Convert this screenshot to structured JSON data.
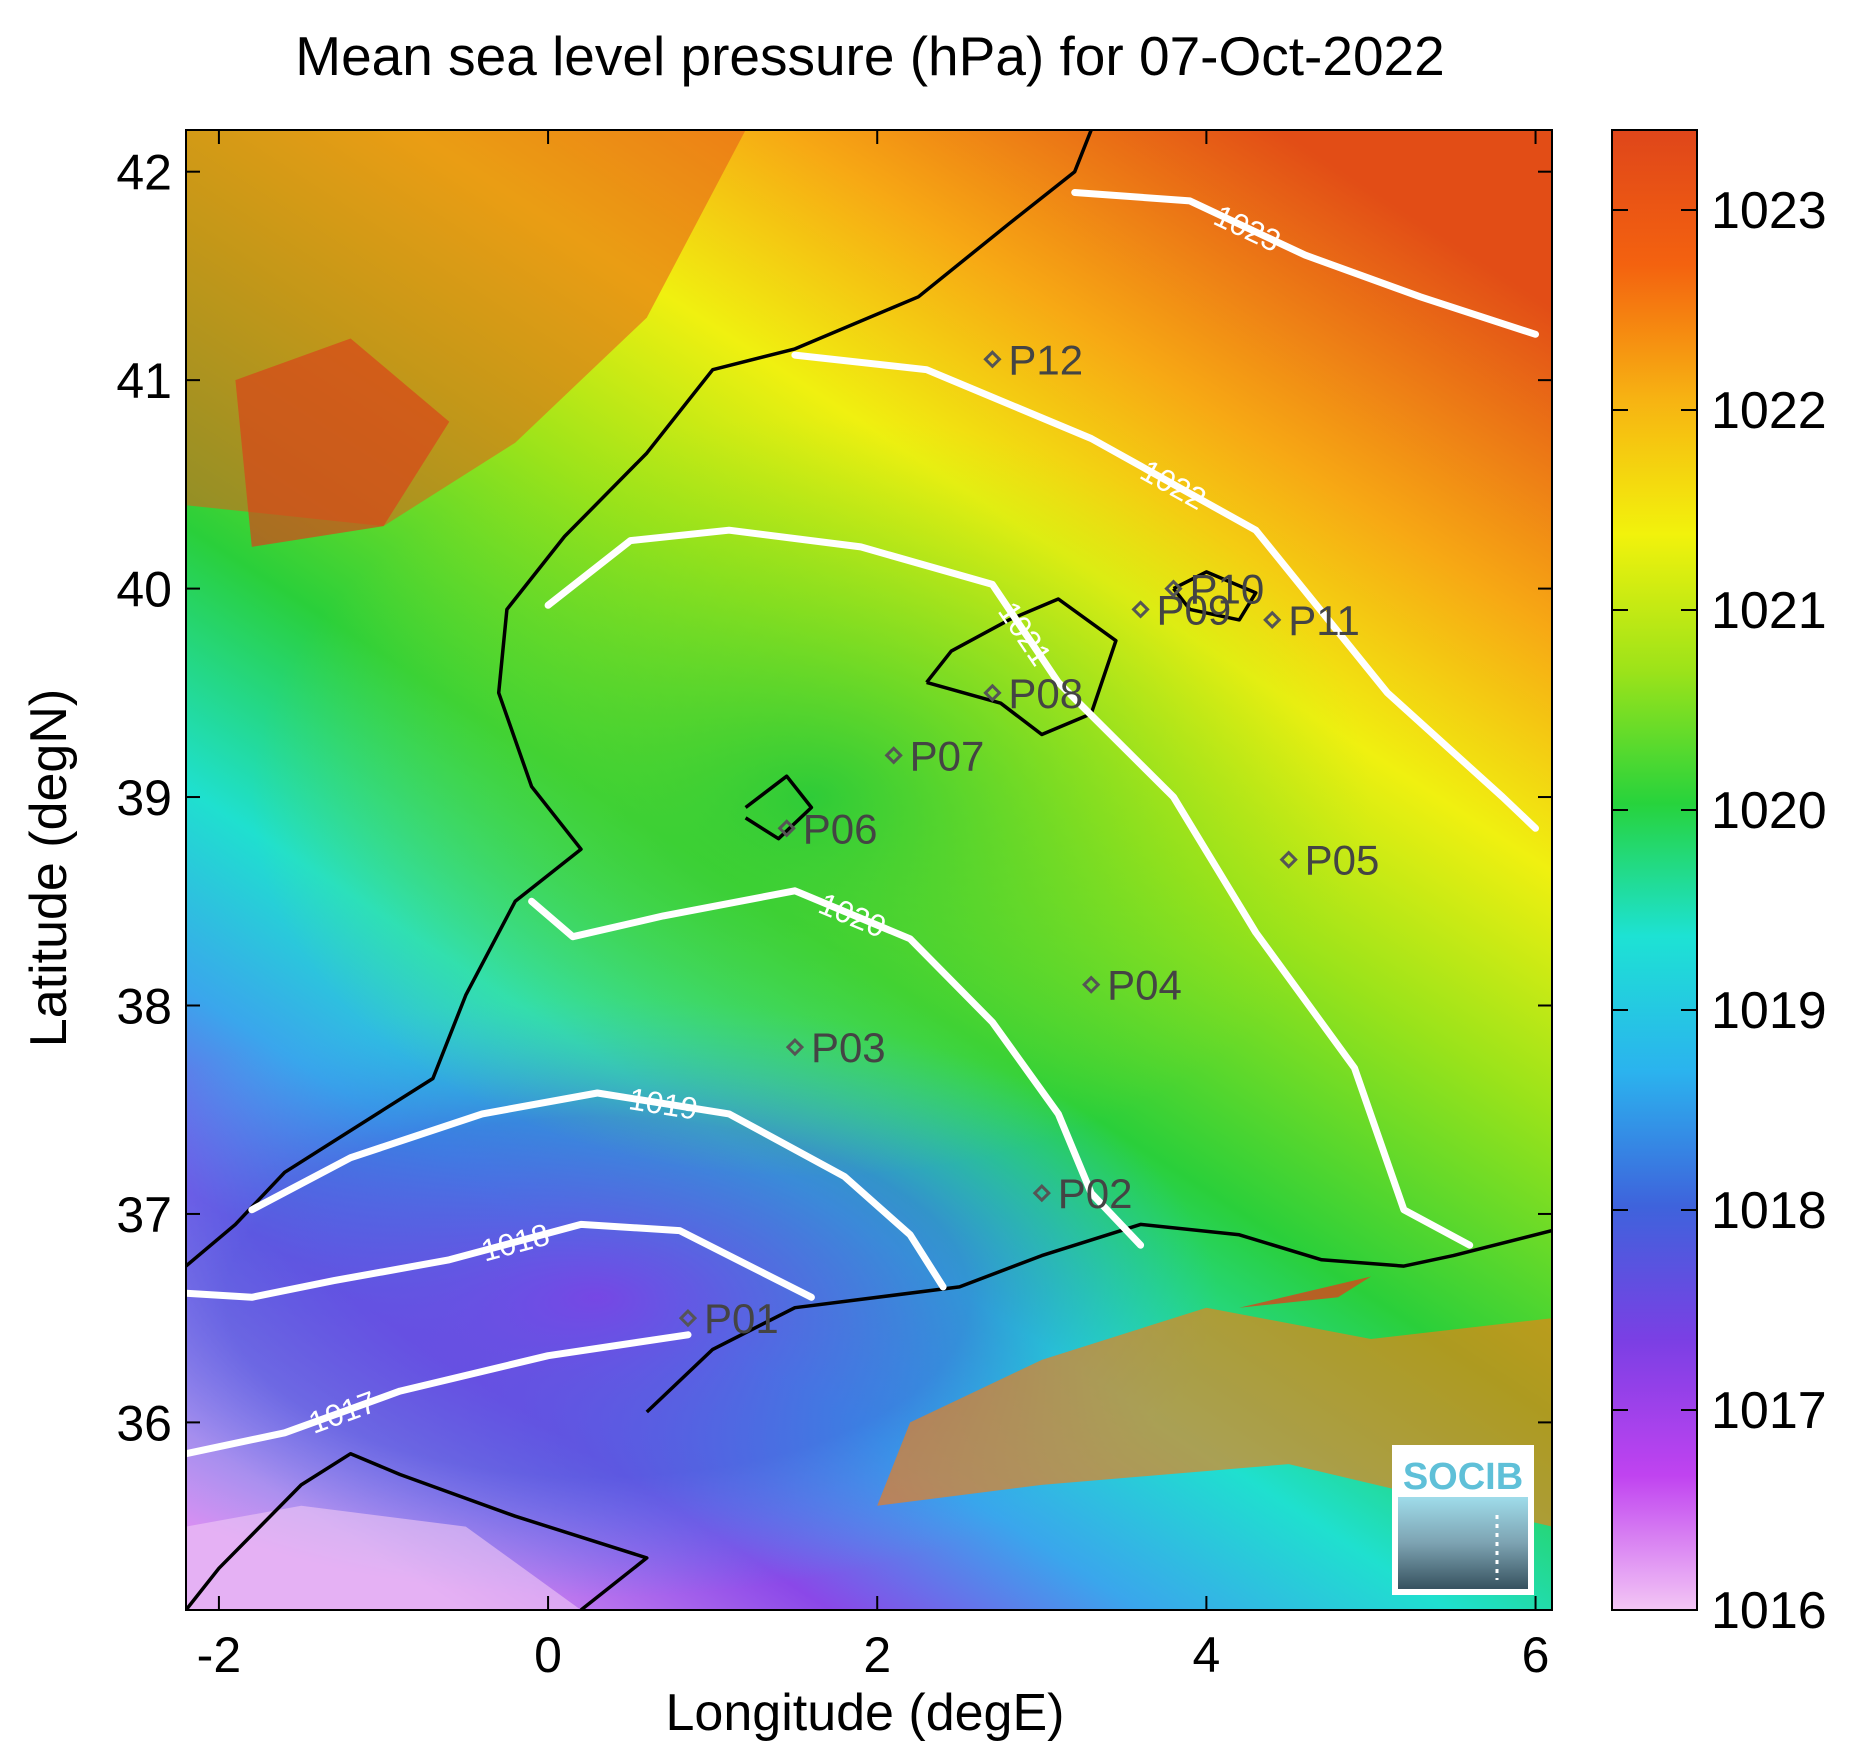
{
  "title": "Mean sea level pressure (hPa) for 07-Oct-2022",
  "x_axis": {
    "label": "Longitude (degE)",
    "range": [
      -2.2,
      6.1
    ],
    "ticks": [
      {
        "value": -2,
        "label": "-2"
      },
      {
        "value": 0,
        "label": "0"
      },
      {
        "value": 2,
        "label": "2"
      },
      {
        "value": 4,
        "label": "4"
      },
      {
        "value": 6,
        "label": "6"
      }
    ]
  },
  "y_axis": {
    "label": "Latitude (degN)",
    "range": [
      35.1,
      42.2
    ],
    "ticks": [
      {
        "value": 36,
        "label": "36"
      },
      {
        "value": 37,
        "label": "37"
      },
      {
        "value": 38,
        "label": "38"
      },
      {
        "value": 39,
        "label": "39"
      },
      {
        "value": 40,
        "label": "40"
      },
      {
        "value": 41,
        "label": "41"
      },
      {
        "value": 42,
        "label": "42"
      }
    ]
  },
  "colorbar": {
    "range": [
      1016,
      1023.4
    ],
    "ticks": [
      {
        "value": 1016,
        "label": "1016"
      },
      {
        "value": 1017,
        "label": "1017"
      },
      {
        "value": 1018,
        "label": "1018"
      },
      {
        "value": 1019,
        "label": "1019"
      },
      {
        "value": 1020,
        "label": "1020"
      },
      {
        "value": 1021,
        "label": "1021"
      },
      {
        "value": 1022,
        "label": "1022"
      },
      {
        "value": 1023,
        "label": "1023"
      }
    ],
    "colors": [
      "#f3c6f5",
      "#c043f0",
      "#7b3fe4",
      "#3e63dc",
      "#2bb3ee",
      "#1de2d4",
      "#27d33c",
      "#9ee319",
      "#f2f20c",
      "#f7b312",
      "#f4620f",
      "#df461a"
    ]
  },
  "contours": [
    {
      "label": "1017",
      "points": [
        [
          -2.2,
          35.85
        ],
        [
          -1.6,
          35.95
        ],
        [
          -0.9,
          36.15
        ],
        [
          0.0,
          36.32
        ],
        [
          0.85,
          36.42
        ]
      ]
    },
    {
      "label": "1018",
      "points": [
        [
          -2.2,
          36.62
        ],
        [
          -1.8,
          36.6
        ],
        [
          -1.3,
          36.68
        ],
        [
          -0.6,
          36.78
        ],
        [
          0.2,
          36.95
        ],
        [
          0.8,
          36.92
        ],
        [
          1.3,
          36.72
        ],
        [
          1.6,
          36.6
        ]
      ]
    },
    {
      "label": "1019",
      "points": [
        [
          -1.8,
          37.02
        ],
        [
          -1.2,
          37.27
        ],
        [
          -0.4,
          37.48
        ],
        [
          0.3,
          37.58
        ],
        [
          1.1,
          37.48
        ],
        [
          1.8,
          37.18
        ],
        [
          2.2,
          36.9
        ],
        [
          2.4,
          36.65
        ]
      ]
    },
    {
      "label": "1020",
      "points": [
        [
          -0.1,
          38.5
        ],
        [
          0.15,
          38.33
        ],
        [
          0.7,
          38.43
        ],
        [
          1.5,
          38.55
        ],
        [
          2.2,
          38.32
        ],
        [
          2.7,
          37.92
        ],
        [
          3.1,
          37.48
        ],
        [
          3.3,
          37.1
        ],
        [
          3.6,
          36.85
        ]
      ]
    },
    {
      "label": "1021",
      "points": [
        [
          0.0,
          39.92
        ],
        [
          0.5,
          40.23
        ],
        [
          1.1,
          40.28
        ],
        [
          1.9,
          40.2
        ],
        [
          2.7,
          40.02
        ],
        [
          3.1,
          39.55
        ],
        [
          3.8,
          39.0
        ],
        [
          4.3,
          38.35
        ],
        [
          4.9,
          37.7
        ],
        [
          5.2,
          37.02
        ],
        [
          5.6,
          36.85
        ]
      ]
    },
    {
      "label": "1022",
      "points": [
        [
          1.5,
          41.12
        ],
        [
          2.3,
          41.05
        ],
        [
          3.3,
          40.72
        ],
        [
          4.3,
          40.28
        ],
        [
          5.1,
          39.5
        ],
        [
          5.8,
          39.0
        ],
        [
          6.0,
          38.85
        ]
      ]
    },
    {
      "label": "1023",
      "points": [
        [
          3.2,
          41.9
        ],
        [
          3.9,
          41.86
        ],
        [
          4.6,
          41.6
        ],
        [
          5.3,
          41.4
        ],
        [
          6.0,
          41.22
        ]
      ]
    }
  ],
  "stations": [
    {
      "id": "P01",
      "lon": 0.85,
      "lat": 36.5
    },
    {
      "id": "P02",
      "lon": 3.0,
      "lat": 37.1
    },
    {
      "id": "P03",
      "lon": 1.5,
      "lat": 37.8
    },
    {
      "id": "P04",
      "lon": 3.3,
      "lat": 38.1
    },
    {
      "id": "P05",
      "lon": 4.5,
      "lat": 38.7
    },
    {
      "id": "P06",
      "lon": 1.45,
      "lat": 38.85
    },
    {
      "id": "P07",
      "lon": 2.1,
      "lat": 39.2
    },
    {
      "id": "P08",
      "lon": 2.7,
      "lat": 39.5
    },
    {
      "id": "P09",
      "lon": 3.6,
      "lat": 39.9
    },
    {
      "id": "P10",
      "lon": 3.8,
      "lat": 40.0
    },
    {
      "id": "P11",
      "lon": 4.4,
      "lat": 39.85
    },
    {
      "id": "P12",
      "lon": 2.7,
      "lat": 41.1
    }
  ],
  "logo": {
    "text": "SOCIB"
  }
}
